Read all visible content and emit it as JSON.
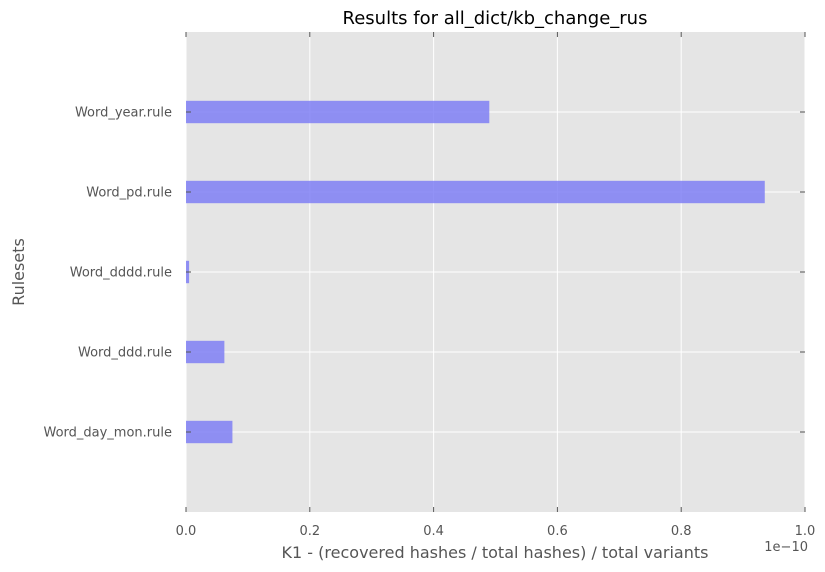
{
  "chart_data": {
    "type": "bar",
    "orientation": "horizontal",
    "title": "Results for all_dict/kb_change_rus",
    "xlabel": "K1 - (recovered hashes / total hashes) / total variants",
    "ylabel": "Rulesets",
    "x_offset_label": "1e−10",
    "x_scale_exponent": -10,
    "xlim": [
      0.0,
      1.0
    ],
    "x_ticks": [
      "0.0",
      "0.2",
      "0.4",
      "0.6",
      "0.8",
      "1.0"
    ],
    "categories": [
      "Word_day_mon.rule",
      "Word_ddd.rule",
      "Word_dddd.rule",
      "Word_pd.rule",
      "Word_year.rule"
    ],
    "values": [
      0.075,
      0.062,
      0.005,
      0.935,
      0.49
    ],
    "grid": true,
    "bar_color": "#7f7ff5",
    "background_color": "#e5e5e5",
    "grid_color": "#ffffff"
  }
}
